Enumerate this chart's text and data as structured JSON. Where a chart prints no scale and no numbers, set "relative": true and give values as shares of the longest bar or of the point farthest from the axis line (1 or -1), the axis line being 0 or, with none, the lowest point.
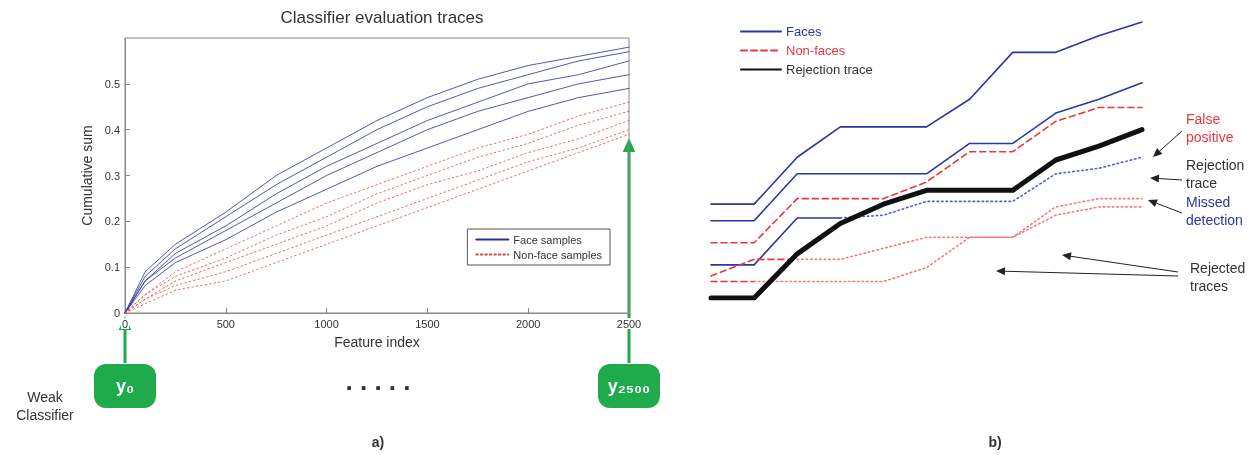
{
  "chart_data": [
    {
      "type": "line",
      "title": "Classifier evaluation traces",
      "xlabel": "Feature index",
      "ylabel": "Cumulative sum",
      "x": [
        0,
        100,
        250,
        500,
        750,
        1000,
        1250,
        1500,
        1750,
        2000,
        2250,
        2500
      ],
      "xlim": [
        0,
        2500
      ],
      "xticks": [
        0,
        500,
        1000,
        1500,
        2000,
        2500
      ],
      "ylim": [
        0,
        0.6
      ],
      "yticks": [
        0,
        0.1,
        0.2,
        0.3,
        0.4,
        0.5
      ],
      "grid": false,
      "legend": "bottom right",
      "marker": "none",
      "series": [
        {
          "name": "Face samples",
          "color": "#2b2f8f",
          "line_style": "solid",
          "values": [
            0,
            0.09,
            0.15,
            0.22,
            0.3,
            0.36,
            0.42,
            0.47,
            0.51,
            0.54,
            0.56,
            0.58
          ]
        },
        {
          "color": "#2b2f8f",
          "line_style": "solid",
          "values": [
            0,
            0.08,
            0.14,
            0.21,
            0.28,
            0.34,
            0.4,
            0.45,
            0.49,
            0.52,
            0.55,
            0.57
          ]
        },
        {
          "color": "#2b2f8f",
          "line_style": "solid",
          "values": [
            0,
            0.07,
            0.13,
            0.19,
            0.26,
            0.32,
            0.37,
            0.42,
            0.46,
            0.5,
            0.52,
            0.55
          ]
        },
        {
          "color": "#2b2f8f",
          "line_style": "solid",
          "values": [
            0,
            0.07,
            0.12,
            0.18,
            0.24,
            0.3,
            0.35,
            0.4,
            0.44,
            0.47,
            0.5,
            0.52
          ]
        },
        {
          "color": "#2b2f8f",
          "line_style": "solid",
          "values": [
            0,
            0.06,
            0.11,
            0.16,
            0.22,
            0.27,
            0.32,
            0.36,
            0.4,
            0.44,
            0.47,
            0.49
          ]
        },
        {
          "name": "Non-face samples",
          "color": "#d9434b",
          "line_style": "dotted",
          "values": [
            0,
            0.04,
            0.09,
            0.14,
            0.19,
            0.24,
            0.28,
            0.32,
            0.36,
            0.39,
            0.43,
            0.46
          ]
        },
        {
          "color": "#d9434b",
          "line_style": "dotted",
          "values": [
            0,
            0.04,
            0.08,
            0.12,
            0.17,
            0.21,
            0.26,
            0.3,
            0.34,
            0.37,
            0.41,
            0.44
          ]
        },
        {
          "color": "#d9434b",
          "line_style": "dotted",
          "values": [
            0,
            0.03,
            0.07,
            0.11,
            0.15,
            0.19,
            0.24,
            0.28,
            0.31,
            0.35,
            0.38,
            0.42
          ]
        },
        {
          "color": "#d9434b",
          "line_style": "dotted",
          "values": [
            0,
            0.03,
            0.06,
            0.09,
            0.13,
            0.17,
            0.21,
            0.25,
            0.29,
            0.33,
            0.36,
            0.4
          ]
        },
        {
          "color": "#d9434b",
          "line_style": "dotted",
          "values": [
            0,
            0.02,
            0.05,
            0.07,
            0.11,
            0.15,
            0.19,
            0.23,
            0.27,
            0.31,
            0.35,
            0.39
          ]
        }
      ],
      "annotations": [
        "Weak Classifier",
        "y₀",
        ". . . . .",
        "y₂₅₀₀",
        "a)"
      ]
    },
    {
      "type": "line",
      "relative": true,
      "categories": [
        null,
        null,
        null,
        null,
        null,
        null,
        null,
        null,
        null,
        null,
        null
      ],
      "grid": false,
      "legend": "top left",
      "marker": "none",
      "series": [
        {
          "name": "Faces",
          "color": "#2e35a0",
          "line_style": "solid",
          "values": [
            0.34,
            0.34,
            0.51,
            0.62,
            0.62,
            0.62,
            0.72,
            0.89,
            0.89,
            0.95,
            1
          ]
        },
        {
          "color": "#2e35a0",
          "line_style": "solid",
          "values": [
            0.28,
            0.28,
            0.45,
            0.45,
            0.45,
            0.45,
            0.56,
            0.56,
            0.67,
            0.72,
            0.78
          ]
        },
        {
          "color": "#2e35a0",
          "line_style": "solid",
          "values": [
            0.12,
            0.12,
            0.29,
            0.29,
            null,
            null,
            null,
            null,
            null,
            null,
            null
          ]
        },
        {
          "color": "#5560d0",
          "line_style": "dotted",
          "values": [
            null,
            null,
            null,
            0.29,
            0.3,
            0.35,
            0.35,
            0.35,
            0.45,
            0.47,
            0.51
          ]
        },
        {
          "name": "Non-faces",
          "color": "#e8383d",
          "line_style": "dashed",
          "values": [
            0.2,
            0.2,
            0.36,
            0.36,
            0.36,
            0.42,
            0.53,
            0.53,
            0.64,
            0.69,
            0.69
          ]
        },
        {
          "color": "#e8383d",
          "line_style": "dashed",
          "values": [
            0.08,
            0.14,
            0.14,
            null,
            null,
            null,
            null,
            null,
            null,
            null,
            null
          ]
        },
        {
          "color": "#e8383d",
          "line_style": "dashed",
          "values": [
            0.06,
            0.06,
            null,
            null,
            null,
            null,
            null,
            null,
            null,
            null,
            null
          ]
        },
        {
          "color": "#f27a7e",
          "line_style": "dotted",
          "values": [
            null,
            null,
            0.14,
            0.14,
            0.18,
            0.22,
            0.22,
            0.22,
            0.3,
            0.33,
            0.33
          ]
        },
        {
          "color": "#f27a7e",
          "line_style": "dotted",
          "values": [
            null,
            0.06,
            0.06,
            0.06,
            0.06,
            0.11,
            0.22,
            0.22,
            0.33,
            0.36,
            0.36
          ]
        },
        {
          "name": "Rejection trace",
          "color": "#111111",
          "line_style": "solid",
          "values": [
            0,
            0,
            0.16,
            0.27,
            0.34,
            0.39,
            0.39,
            0.39,
            0.5,
            0.55,
            0.61
          ]
        }
      ],
      "annotations": [
        "False positive",
        "Rejection trace",
        "Missed detection",
        "Rejected traces",
        "b)"
      ]
    }
  ]
}
